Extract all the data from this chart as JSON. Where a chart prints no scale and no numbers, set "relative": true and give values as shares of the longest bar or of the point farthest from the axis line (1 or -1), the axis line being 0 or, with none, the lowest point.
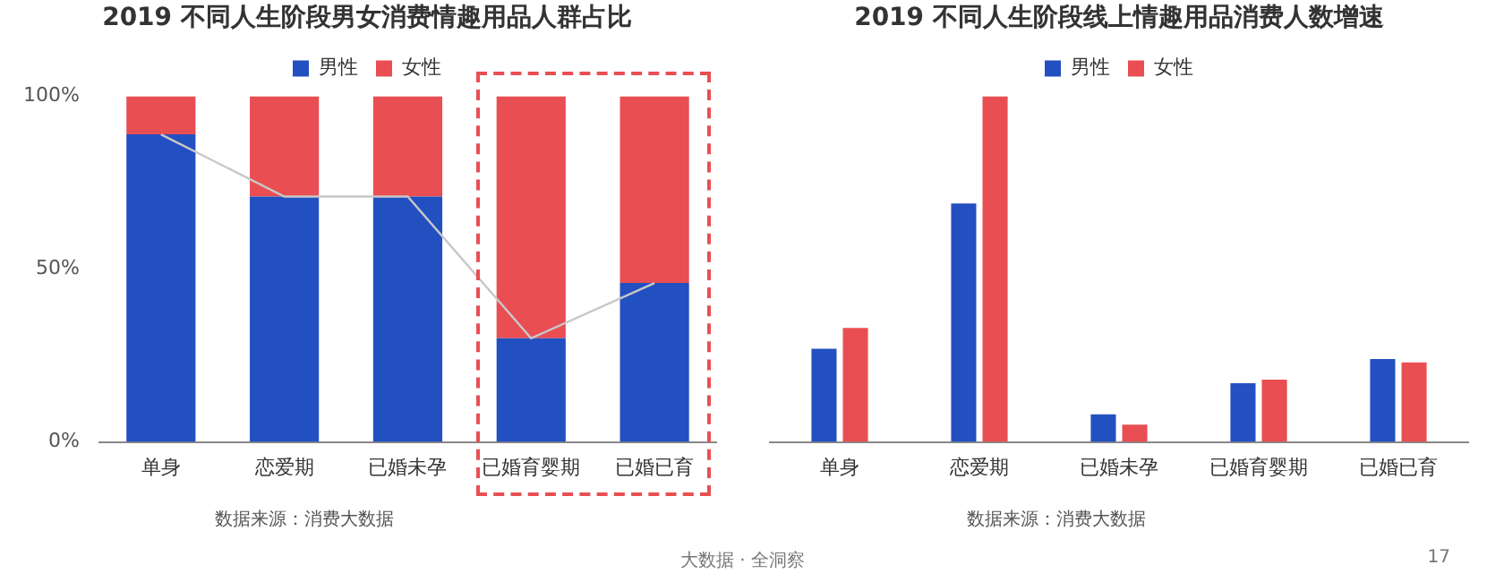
{
  "chart_data": [
    {
      "type": "bar",
      "title": "2019 不同人生阶段男女消费情趣用品人群占比",
      "categories": [
        "单身",
        "恋爱期",
        "已婚未孕",
        "已婚育婴期",
        "已婚已育"
      ],
      "stacked": true,
      "legend": "top",
      "grid": false,
      "ylim": [
        0,
        100
      ],
      "yticks": [
        {
          "value": 0,
          "label": "0%"
        },
        {
          "value": 50,
          "label": "50%"
        },
        {
          "value": 100,
          "label": "100%"
        }
      ],
      "series": [
        {
          "name": "男性",
          "color": "#2350c0",
          "values": [
            89,
            71,
            71,
            30,
            46
          ]
        },
        {
          "name": "女性",
          "color": "#e94e53",
          "values": [
            11,
            29,
            29,
            70,
            54
          ]
        },
        {
          "type": "line",
          "color": "#c8c8c8",
          "values": [
            89,
            71,
            71,
            30,
            46
          ]
        }
      ],
      "annotations": [
        "数据来源：消费大数据"
      ]
    },
    {
      "type": "bar",
      "title": "2019 不同人生阶段线上情趣用品消费人数增速",
      "categories": [
        "单身",
        "恋爱期",
        "已婚未孕",
        "已婚育婴期",
        "已婚已育"
      ],
      "relative": true,
      "legend": "top",
      "grid": false,
      "series": [
        {
          "name": "男性",
          "color": "#2350c0",
          "values": [
            0.27,
            0.69,
            0.08,
            0.17,
            0.24
          ]
        },
        {
          "name": "女性",
          "color": "#e94e53",
          "values": [
            0.33,
            1,
            0.05,
            0.18,
            0.23
          ]
        }
      ],
      "annotations": [
        "数据来源：消费大数据",
        "大数据 · 全洞察",
        "17"
      ]
    }
  ]
}
